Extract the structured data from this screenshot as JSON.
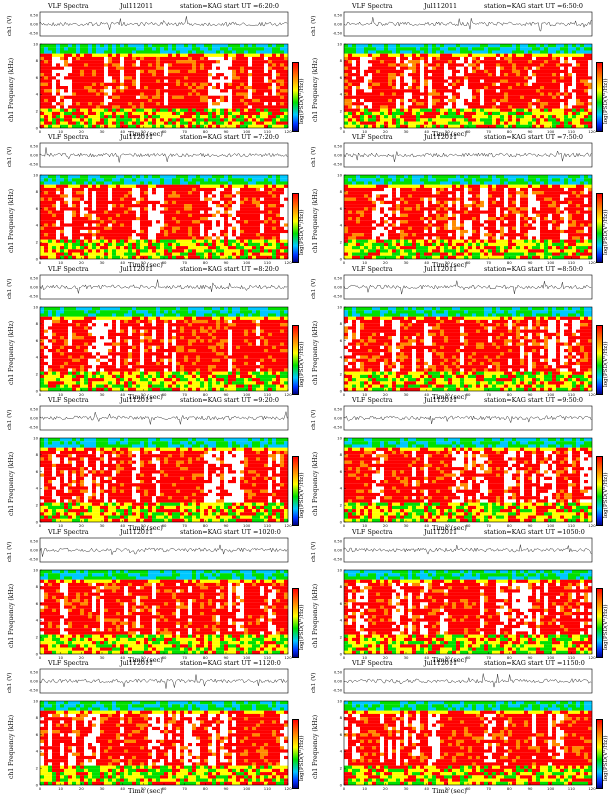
{
  "panels": [
    {
      "title": "VLF Spectra",
      "date": "Jul112011",
      "station": "station=KAG",
      "start": "start  UT =6:20:0"
    },
    {
      "title": "VLF Spectra",
      "date": "Jul112011",
      "station": "station=KAG",
      "start": "start  UT =6:50:0"
    },
    {
      "title": "VLF Spectra",
      "date": "Jul112011",
      "station": "station=KAG",
      "start": "start  UT =7:20:0"
    },
    {
      "title": "VLF Spectra",
      "date": "Jul112011",
      "station": "station=KAG",
      "start": "start  UT =7:50:0"
    },
    {
      "title": "VLF Spectra",
      "date": "Jul112011",
      "station": "station=KAG",
      "start": "start  UT =8:20:0"
    },
    {
      "title": "VLF Spectra",
      "date": "Jul112011",
      "station": "station=KAG",
      "start": "start  UT =8:50:0"
    },
    {
      "title": "VLF Spectra",
      "date": "Jul112011",
      "station": "station=KAG",
      "start": "start  UT =9:20:0"
    },
    {
      "title": "VLF Spectra",
      "date": "Jul112011",
      "station": "station=KAG",
      "start": "start  UT =9:50:0"
    },
    {
      "title": "VLF Spectra",
      "date": "Jul112011",
      "station": "station=KAG",
      "start": "start  UT =1020:0"
    },
    {
      "title": "VLF Spectra",
      "date": "Jul112011",
      "station": "station=KAG",
      "start": "start  UT =1050:0"
    },
    {
      "title": "VLF Spectra",
      "date": "Jul112011",
      "station": "station=KAG",
      "start": "start  UT =1120:0"
    },
    {
      "title": "VLF Spectra",
      "date": "Jul112011",
      "station": "station=KAG",
      "start": "start  UT =1150:0"
    }
  ],
  "labels": {
    "waveform_ylabel": "ch1 (V)",
    "waveform_ticks": [
      "0.50",
      "0.00",
      "-0.50"
    ],
    "channel_label": "ch1",
    "freq_ylabel": "Frequency  (kHz)",
    "colorbar_label": "log(PSD(V²/Hz))",
    "xlabel": "Time  (sec)"
  },
  "chart_data": {
    "type": "heatmap",
    "description_axes": {
      "x": {
        "label": "Time  (sec)",
        "range": [
          0,
          120
        ],
        "ticks": [
          0,
          10,
          20,
          30,
          40,
          50,
          60,
          70,
          80,
          90,
          100,
          110,
          120
        ]
      },
      "y": {
        "label": "Frequency  (kHz)",
        "range": [
          0,
          10
        ],
        "ticks": [
          0,
          2,
          4,
          6,
          8,
          10
        ]
      },
      "waveform_y": {
        "label": "ch1 (V)",
        "range": [
          -0.5,
          0.5
        ],
        "ticks": [
          0.5,
          0.0,
          -0.5
        ]
      }
    },
    "colormap": [
      "#000080",
      "#0030ff",
      "#00c8ff",
      "#00e000",
      "#ffff00",
      "#ff8c00",
      "#ff0000"
    ],
    "layout": "6 rows x 2 columns",
    "grid": false
  }
}
